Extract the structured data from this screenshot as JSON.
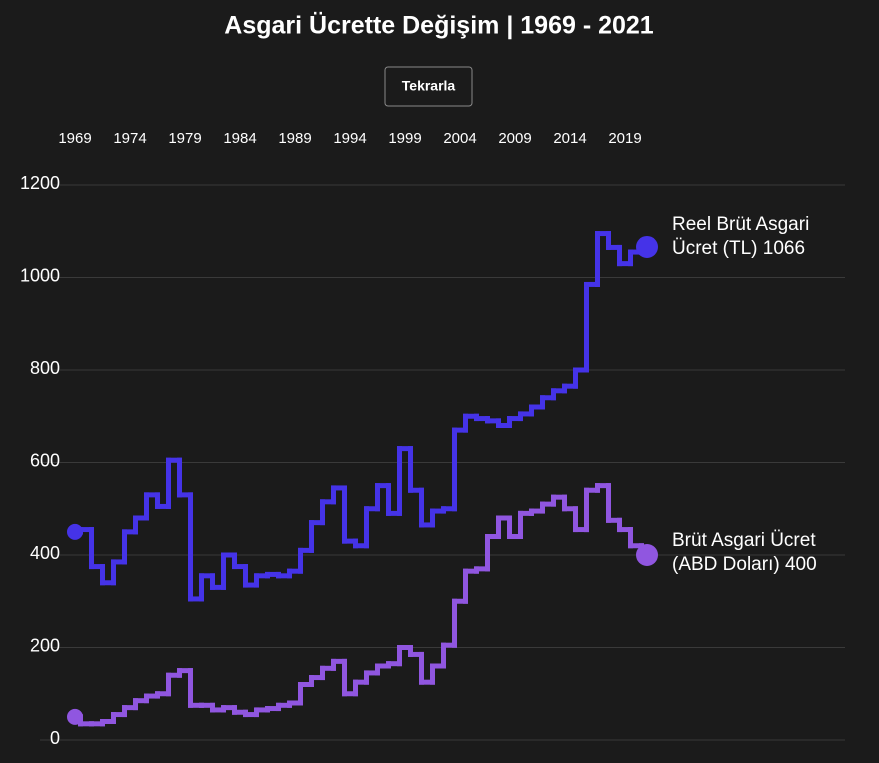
{
  "chart_data": {
    "type": "step-line",
    "title": "Asgari Ücrette Değişim | 1969 - 2021",
    "button": "Tekrarla",
    "x": [
      1969,
      1970,
      1971,
      1972,
      1973,
      1974,
      1975,
      1976,
      1977,
      1978,
      1979,
      1980,
      1981,
      1982,
      1983,
      1984,
      1985,
      1986,
      1987,
      1988,
      1989,
      1990,
      1991,
      1992,
      1993,
      1994,
      1995,
      1996,
      1997,
      1998,
      1999,
      2000,
      2001,
      2002,
      2003,
      2004,
      2005,
      2006,
      2007,
      2008,
      2009,
      2010,
      2011,
      2012,
      2013,
      2014,
      2015,
      2016,
      2017,
      2018,
      2019,
      2020,
      2021
    ],
    "xlim": [
      1969,
      2021
    ],
    "xticks": [
      1969,
      1974,
      1979,
      1984,
      1989,
      1994,
      1999,
      2004,
      2009,
      2014,
      2019
    ],
    "ylim": [
      0,
      1200
    ],
    "yticks": [
      0,
      200,
      400,
      600,
      800,
      1000,
      1200
    ],
    "grid": true,
    "series": [
      {
        "name": "Reel Brüt Asgari Ücret (TL)",
        "color": "#4533e8",
        "values": [
          450,
          455,
          375,
          340,
          385,
          450,
          480,
          530,
          505,
          605,
          530,
          305,
          355,
          330,
          400,
          375,
          335,
          355,
          358,
          355,
          365,
          410,
          470,
          515,
          545,
          430,
          420,
          500,
          550,
          490,
          630,
          540,
          465,
          495,
          500,
          670,
          700,
          695,
          690,
          680,
          695,
          705,
          720,
          740,
          755,
          765,
          800,
          985,
          1095,
          1065,
          1030,
          1055,
          1066
        ]
      },
      {
        "name": "Brüt Asgari Ücret (ABD Doları)",
        "color": "#9056e0",
        "values": [
          50,
          35,
          35,
          40,
          55,
          70,
          85,
          95,
          100,
          140,
          150,
          75,
          75,
          65,
          70,
          60,
          55,
          65,
          68,
          75,
          80,
          120,
          135,
          155,
          170,
          100,
          125,
          145,
          160,
          165,
          200,
          185,
          125,
          160,
          205,
          300,
          365,
          370,
          440,
          480,
          440,
          490,
          495,
          510,
          525,
          500,
          455,
          540,
          550,
          475,
          455,
          420,
          400
        ]
      }
    ]
  }
}
